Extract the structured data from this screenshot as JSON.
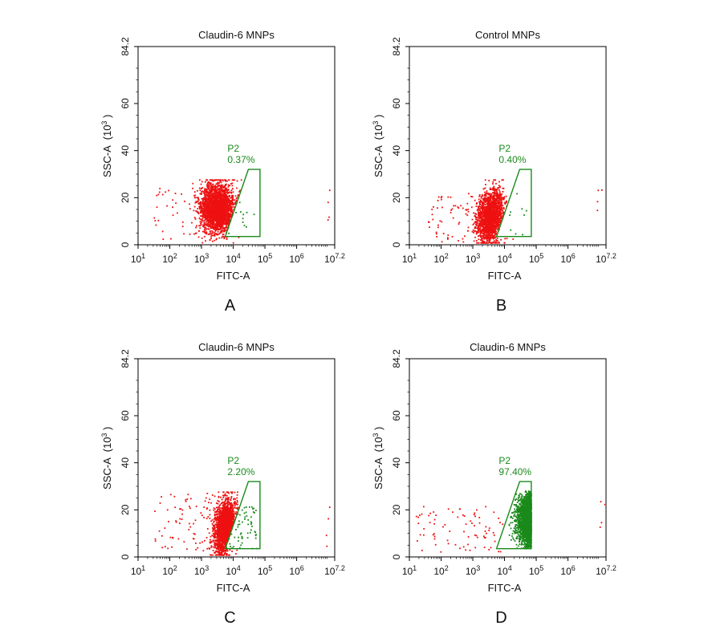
{
  "colors": {
    "gated": "#1a8a1a",
    "ungated": "#ee1111",
    "axis": "#000000"
  },
  "chart_data": [
    {
      "type": "scatter",
      "panel_label": "A",
      "title": "Claudin-6 MNPs",
      "xlabel": "FITC-A",
      "ylabel": "SSC-A",
      "ylabel_unit_base": "(10",
      "ylabel_unit_exp": "3",
      "ylabel_unit_tail": ")",
      "x_scale": "log",
      "xlim": [
        10,
        15848932
      ],
      "ylim": [
        0,
        84.2
      ],
      "x_tick_bases": [
        "10",
        "10",
        "10",
        "10",
        "10",
        "10",
        "10"
      ],
      "x_tick_exps": [
        "1",
        "2",
        "3",
        "4",
        "5",
        "6",
        "7.2"
      ],
      "x_tick_values": [
        10,
        100,
        1000,
        10000,
        100000,
        1000000,
        15848932
      ],
      "y_tick_labels": [
        "0",
        "20",
        "40",
        "60",
        "84.2"
      ],
      "y_tick_values": [
        0,
        20,
        40,
        60,
        84.2
      ],
      "gate": {
        "name": "P2",
        "percent": "0.37%",
        "polygon": [
          [
            5600,
            3.5
          ],
          [
            70000,
            3.5
          ],
          [
            70000,
            32
          ],
          [
            30000,
            32
          ]
        ]
      },
      "populations": [
        {
          "name": "ungated",
          "count": 2600,
          "log_x_center": 3.5,
          "log_x_sd": 0.26,
          "y_center": 15.5,
          "y_sd": 5.2,
          "tilt": 0
        },
        {
          "name": "scatter",
          "count": 90,
          "log_x_min": 1.5,
          "log_x_max": 4.4,
          "y_min": 2,
          "y_max": 24
        }
      ],
      "gated_count": 12,
      "grid": false,
      "legend": "none"
    },
    {
      "type": "scatter",
      "panel_label": "B",
      "title": "Control MNPs",
      "xlabel": "FITC-A",
      "ylabel": "SSC-A",
      "ylabel_unit_base": "(10",
      "ylabel_unit_exp": "3",
      "ylabel_unit_tail": ")",
      "x_scale": "log",
      "xlim": [
        10,
        15848932
      ],
      "ylim": [
        0,
        84.2
      ],
      "x_tick_bases": [
        "10",
        "10",
        "10",
        "10",
        "10",
        "10",
        "10"
      ],
      "x_tick_exps": [
        "1",
        "2",
        "3",
        "4",
        "5",
        "6",
        "7.2"
      ],
      "x_tick_values": [
        10,
        100,
        1000,
        10000,
        100000,
        1000000,
        15848932
      ],
      "y_tick_labels": [
        "0",
        "20",
        "40",
        "60",
        "84.2"
      ],
      "y_tick_values": [
        0,
        20,
        40,
        60,
        84.2
      ],
      "gate": {
        "name": "P2",
        "percent": "0.40%",
        "polygon": [
          [
            5600,
            3.5
          ],
          [
            70000,
            3.5
          ],
          [
            70000,
            32
          ],
          [
            30000,
            32
          ]
        ]
      },
      "populations": [
        {
          "name": "ungated",
          "count": 1800,
          "log_x_center": 3.55,
          "log_x_sd": 0.2,
          "y_center": 12,
          "y_sd": 5.5,
          "tilt": 9
        },
        {
          "name": "scatter",
          "count": 110,
          "log_x_min": 1.6,
          "log_x_max": 4.3,
          "y_min": 1,
          "y_max": 22
        }
      ],
      "gated_count": 10,
      "grid": false,
      "legend": "none"
    },
    {
      "type": "scatter",
      "panel_label": "C",
      "title": "Claudin-6 MNPs",
      "xlabel": "FITC-A",
      "ylabel": "SSC-A",
      "ylabel_unit_base": "(10",
      "ylabel_unit_exp": "3",
      "ylabel_unit_tail": ")",
      "x_scale": "log",
      "xlim": [
        10,
        15848932
      ],
      "ylim": [
        0,
        84.2
      ],
      "x_tick_bases": [
        "10",
        "10",
        "10",
        "10",
        "10",
        "10",
        "10"
      ],
      "x_tick_exps": [
        "1",
        "2",
        "3",
        "4",
        "5",
        "6",
        "7.2"
      ],
      "x_tick_values": [
        10,
        100,
        1000,
        10000,
        100000,
        1000000,
        15848932
      ],
      "y_tick_labels": [
        "0",
        "20",
        "40",
        "60",
        "84.2"
      ],
      "y_tick_values": [
        0,
        20,
        40,
        60,
        84.2
      ],
      "gate": {
        "name": "P2",
        "percent": "2.20%",
        "polygon": [
          [
            5600,
            3.5
          ],
          [
            70000,
            3.5
          ],
          [
            70000,
            32
          ],
          [
            30000,
            32
          ]
        ]
      },
      "populations": [
        {
          "name": "ungated",
          "count": 1900,
          "log_x_center": 3.75,
          "log_x_sd": 0.17,
          "y_center": 13,
          "y_sd": 5.5,
          "tilt": 8
        },
        {
          "name": "scatter",
          "count": 100,
          "log_x_min": 1.5,
          "log_x_max": 4.0,
          "y_min": 2,
          "y_max": 27
        }
      ],
      "gated_count": 60,
      "grid": false,
      "legend": "none"
    },
    {
      "type": "scatter",
      "panel_label": "D",
      "title": "Claudin-6 MNPs",
      "xlabel": "FITC-A",
      "ylabel": "SSC-A",
      "ylabel_unit_base": "(10",
      "ylabel_unit_exp": "3",
      "ylabel_unit_tail": ")",
      "x_scale": "log",
      "xlim": [
        10,
        15848932
      ],
      "ylim": [
        0,
        84.2
      ],
      "x_tick_bases": [
        "10",
        "10",
        "10",
        "10",
        "10",
        "10",
        "10"
      ],
      "x_tick_exps": [
        "1",
        "2",
        "3",
        "4",
        "5",
        "6",
        "7.2"
      ],
      "x_tick_values": [
        10,
        100,
        1000,
        10000,
        100000,
        1000000,
        15848932
      ],
      "y_tick_labels": [
        "0",
        "20",
        "40",
        "60",
        "84.2"
      ],
      "y_tick_values": [
        0,
        20,
        40,
        60,
        84.2
      ],
      "gate": {
        "name": "P2",
        "percent": "97.40%",
        "polygon": [
          [
            5600,
            3.5
          ],
          [
            70000,
            3.5
          ],
          [
            70000,
            32
          ],
          [
            30000,
            32
          ]
        ]
      },
      "populations": [
        {
          "name": "scatter",
          "count": 80,
          "log_x_min": 1.2,
          "log_x_max": 4.0,
          "y_min": 2,
          "y_max": 22
        }
      ],
      "gated_count": 2500,
      "gated_log_x_center": 5.05,
      "gated_log_x_sd": 0.26,
      "gated_y_center": 16,
      "gated_y_sd": 5.5,
      "grid": false,
      "legend": "none"
    }
  ]
}
